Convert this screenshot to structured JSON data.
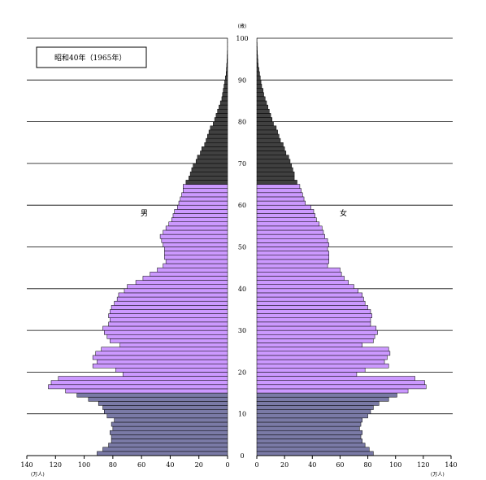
{
  "chart_data": {
    "type": "bar",
    "orientation": "horizontal-pyramid",
    "title": "昭和40年（1965年）",
    "age_unit": "(歳)",
    "value_unit": "(万人)",
    "left_label": "男",
    "right_label": "女",
    "age_ticks": [
      0,
      10,
      20,
      30,
      40,
      50,
      60,
      70,
      80,
      90,
      100
    ],
    "x_ticks_left": [
      140,
      120,
      100,
      80,
      60,
      40,
      20,
      0
    ],
    "x_ticks_right": [
      0,
      20,
      40,
      60,
      80,
      100,
      120,
      140
    ],
    "xlim": [
      0,
      140
    ],
    "ylim": [
      0,
      100
    ],
    "grid": "horizontal lines every 10 years",
    "band_colors": {
      "young": "#7a7aa6",
      "working": "#cc99ff",
      "old": "#404040"
    },
    "ages": [
      0,
      1,
      2,
      3,
      4,
      5,
      6,
      7,
      8,
      9,
      10,
      11,
      12,
      13,
      14,
      15,
      16,
      17,
      18,
      19,
      20,
      21,
      22,
      23,
      24,
      25,
      26,
      27,
      28,
      29,
      30,
      31,
      32,
      33,
      34,
      35,
      36,
      37,
      38,
      39,
      40,
      41,
      42,
      43,
      44,
      45,
      46,
      47,
      48,
      49,
      50,
      51,
      52,
      53,
      54,
      55,
      56,
      57,
      58,
      59,
      60,
      61,
      62,
      63,
      64,
      65,
      66,
      67,
      68,
      69,
      70,
      71,
      72,
      73,
      74,
      75,
      76,
      77,
      78,
      79,
      80,
      81,
      82,
      83,
      84,
      85,
      86,
      87,
      88,
      89,
      90,
      91,
      92,
      93,
      94,
      95,
      96,
      97,
      98,
      99
    ],
    "series": [
      {
        "name": "男",
        "values": [
          91,
          87,
          83,
          81,
          81,
          82,
          80,
          81,
          79,
          84,
          86,
          87,
          90,
          97,
          105,
          113,
          125,
          123,
          118,
          73,
          78,
          94,
          91,
          94,
          92,
          88,
          75,
          82,
          84,
          86,
          87,
          83,
          82,
          83,
          82,
          81,
          79,
          77,
          76,
          72,
          70,
          64,
          59,
          54,
          49,
          45,
          43,
          44,
          44,
          44,
          45,
          46,
          47,
          45,
          43,
          41,
          39,
          38,
          37,
          35,
          34,
          33,
          32,
          31,
          31,
          29,
          27,
          26,
          25,
          24,
          22,
          21,
          19,
          18,
          16,
          15,
          14,
          13,
          12,
          10,
          9,
          8,
          7,
          6,
          5,
          4,
          3.5,
          3,
          2.5,
          2,
          1.5,
          1,
          0.8,
          0.6,
          0.4,
          0.3,
          0.2,
          0.1,
          0.1,
          0.1
        ]
      },
      {
        "name": "女",
        "values": [
          84,
          81,
          78,
          76,
          75,
          76,
          74,
          75,
          76,
          80,
          82,
          84,
          88,
          95,
          101,
          109,
          122,
          121,
          114,
          72,
          78,
          95,
          92,
          94,
          96,
          95,
          76,
          84,
          85,
          87,
          86,
          82,
          82,
          83,
          82,
          80,
          78,
          77,
          76,
          73,
          70,
          66,
          63,
          61,
          60,
          51,
          52,
          52,
          52,
          51,
          52,
          51,
          49,
          48,
          47,
          45,
          43,
          42,
          41,
          39,
          35,
          34,
          33,
          32,
          31,
          29,
          27,
          27,
          26,
          25,
          24,
          23,
          21,
          20,
          19,
          17,
          16,
          15,
          14,
          12,
          11,
          10,
          9,
          8,
          7,
          6,
          5,
          4.5,
          3.5,
          3,
          2.5,
          2,
          1.5,
          1,
          0.8,
          0.6,
          0.4,
          0.3,
          0.2,
          0.1
        ]
      }
    ]
  }
}
